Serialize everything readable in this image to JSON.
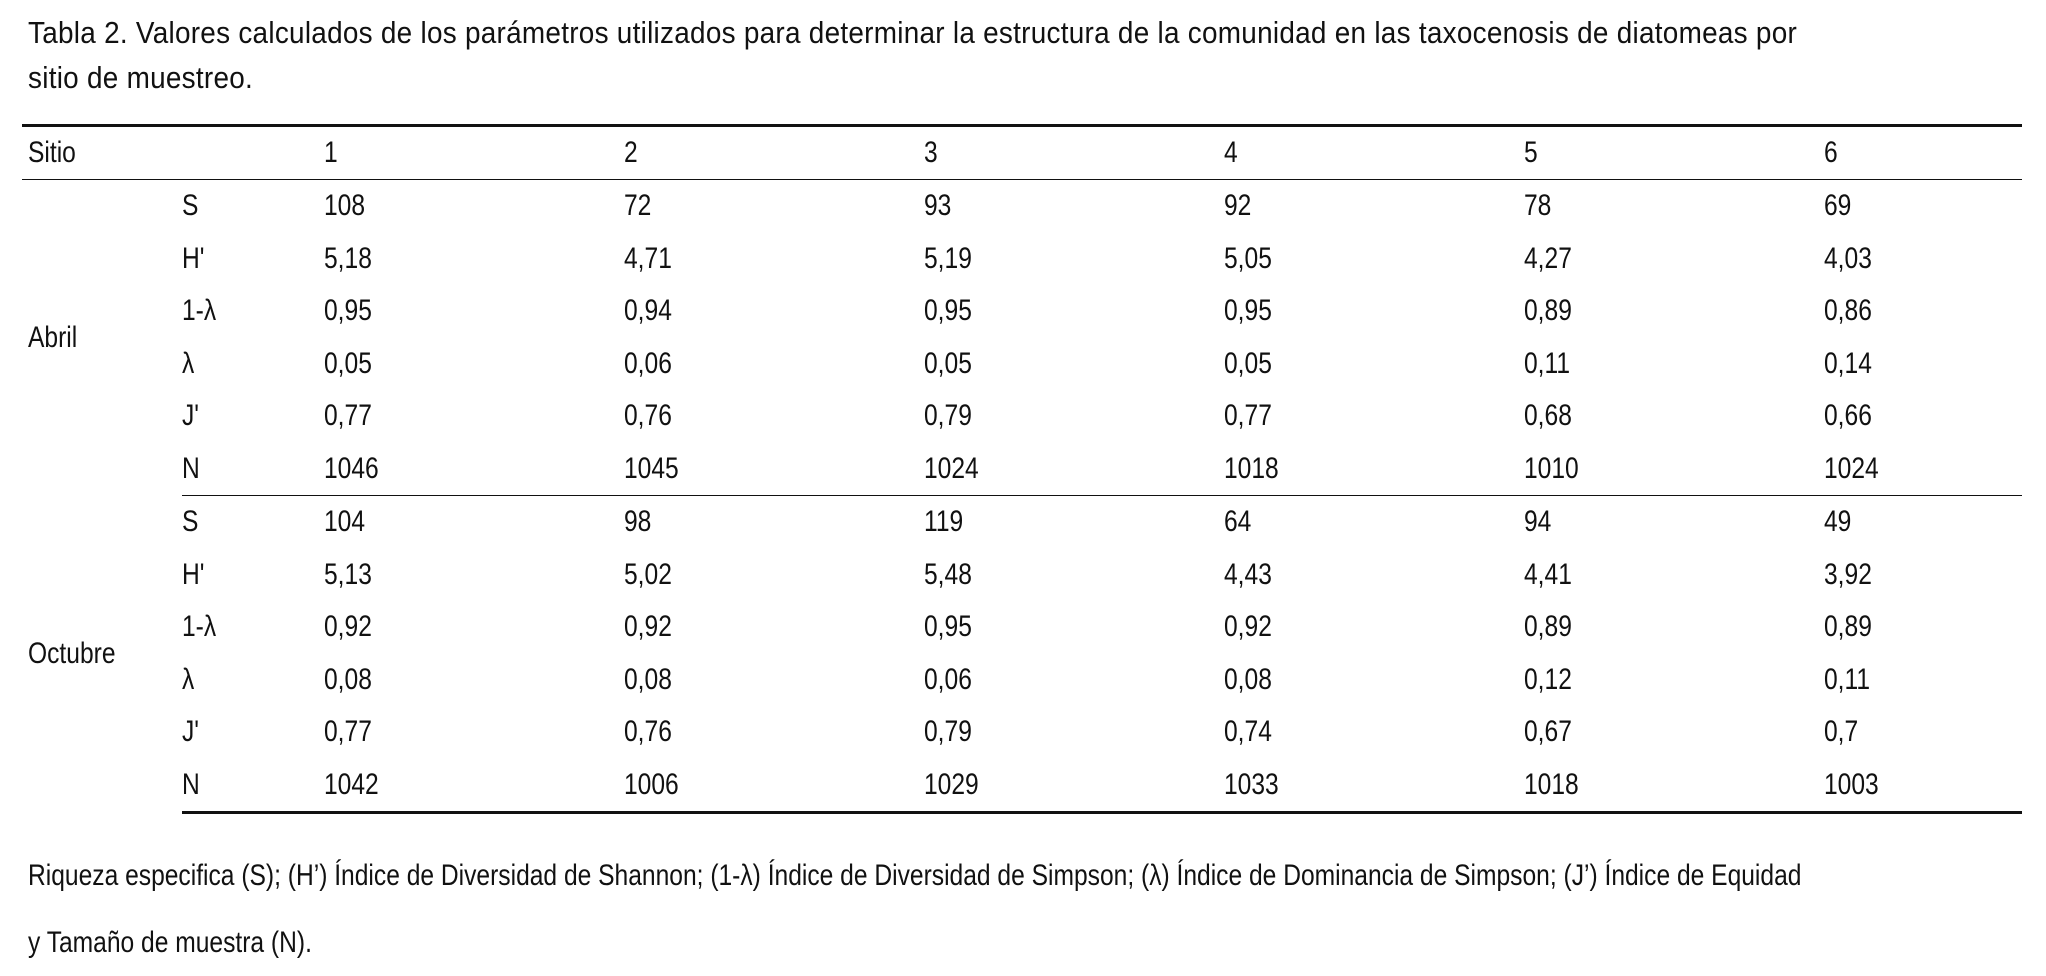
{
  "caption": "Tabla 2. Valores calculados de los parámetros utilizados para determinar la estructura de la comunidad en las taxocenosis de diatomeas por sitio de muestreo.",
  "table": {
    "header": {
      "sitio": "Sitio",
      "sites": [
        "1",
        "2",
        "3",
        "4",
        "5",
        "6"
      ]
    },
    "groups": [
      {
        "label": "Abril",
        "rows": [
          {
            "param": "S",
            "values": [
              "108",
              "72",
              "93",
              "92",
              "78",
              "69"
            ]
          },
          {
            "param": "H'",
            "values": [
              "5,18",
              "4,71",
              "5,19",
              "5,05",
              "4,27",
              "4,03"
            ]
          },
          {
            "param": "1-λ",
            "values": [
              "0,95",
              "0,94",
              "0,95",
              "0,95",
              "0,89",
              "0,86"
            ]
          },
          {
            "param": "λ",
            "values": [
              "0,05",
              "0,06",
              "0,05",
              "0,05",
              "0,11",
              "0,14"
            ]
          },
          {
            "param": "J'",
            "values": [
              "0,77",
              "0,76",
              "0,79",
              "0,77",
              "0,68",
              "0,66"
            ]
          },
          {
            "param": "N",
            "values": [
              "1046",
              "1045",
              "1024",
              "1018",
              "1010",
              "1024"
            ]
          }
        ]
      },
      {
        "label": "Octubre",
        "rows": [
          {
            "param": "S",
            "values": [
              "104",
              "98",
              "119",
              "64",
              "94",
              "49"
            ]
          },
          {
            "param": "H'",
            "values": [
              "5,13",
              "5,02",
              "5,48",
              "4,43",
              "4,41",
              "3,92"
            ]
          },
          {
            "param": "1-λ",
            "values": [
              "0,92",
              "0,92",
              "0,95",
              "0,92",
              "0,89",
              "0,89"
            ]
          },
          {
            "param": "λ",
            "values": [
              "0,08",
              "0,08",
              "0,06",
              "0,08",
              "0,12",
              "0,11"
            ]
          },
          {
            "param": "J'",
            "values": [
              "0,77",
              "0,76",
              "0,79",
              "0,74",
              "0,67",
              "0,7"
            ]
          },
          {
            "param": "N",
            "values": [
              "1042",
              "1006",
              "1029",
              "1033",
              "1018",
              "1003"
            ]
          }
        ]
      }
    ]
  },
  "footnote": {
    "line1": "Riqueza especifica (S); (H’) Índice de Diversidad de Shannon; (1-λ) Índice de Diversidad de Simpson; (λ) Índice de Dominancia de Simpson; (J’) Índice de Equidad",
    "line2": "y Tamaño de muestra (N)."
  }
}
